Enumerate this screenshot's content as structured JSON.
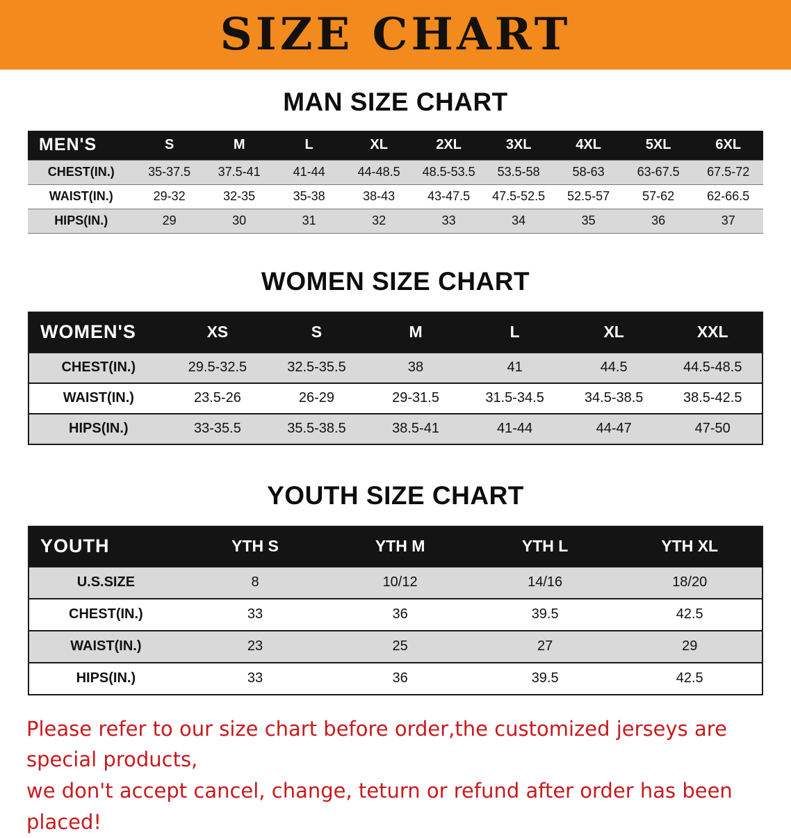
{
  "banner": {
    "title": "SIZE CHART",
    "bg_color": "#F28A1E"
  },
  "colors": {
    "table_header_bg": "#141414",
    "row_alt_bg": "#D9D9D9",
    "disclaimer_red": "#C81A1E"
  },
  "sections": [
    {
      "title": "MAN SIZE CHART",
      "table": {
        "label": "MEN'S",
        "columns": [
          "S",
          "M",
          "L",
          "XL",
          "2XL",
          "3XL",
          "4XL",
          "5XL",
          "6XL"
        ],
        "rows": [
          {
            "label": "CHEST(IN.)",
            "values": [
              "35-37.5",
              "37.5-41",
              "41-44",
              "44-48.5",
              "48.5-53.5",
              "53.5-58",
              "58-63",
              "63-67.5",
              "67.5-72"
            ]
          },
          {
            "label": "WAIST(IN.)",
            "values": [
              "29-32",
              "32-35",
              "35-38",
              "38-43",
              "43-47.5",
              "47.5-52.5",
              "52.5-57",
              "57-62",
              "62-66.5"
            ]
          },
          {
            "label": "HIPS(IN.)",
            "values": [
              "29",
              "30",
              "31",
              "32",
              "33",
              "34",
              "35",
              "36",
              "37"
            ]
          }
        ]
      }
    },
    {
      "title": "WOMEN SIZE CHART",
      "table": {
        "label": "WOMEN'S",
        "columns": [
          "XS",
          "S",
          "M",
          "L",
          "XL",
          "XXL"
        ],
        "rows": [
          {
            "label": "CHEST(IN.)",
            "values": [
              "29.5-32.5",
              "32.5-35.5",
              "38",
              "41",
              "44.5",
              "44.5-48.5"
            ]
          },
          {
            "label": "WAIST(IN.)",
            "values": [
              "23.5-26",
              "26-29",
              "29-31.5",
              "31.5-34.5",
              "34.5-38.5",
              "38.5-42.5"
            ]
          },
          {
            "label": "HIPS(IN.)",
            "values": [
              "33-35.5",
              "35.5-38.5",
              "38.5-41",
              "41-44",
              "44-47",
              "47-50"
            ]
          }
        ]
      }
    },
    {
      "title": "YOUTH SIZE CHART",
      "table": {
        "label": "YOUTH",
        "columns": [
          "YTH S",
          "YTH M",
          "YTH L",
          "YTH XL"
        ],
        "rows": [
          {
            "label": "U.S.SIZE",
            "values": [
              "8",
              "10/12",
              "14/16",
              "18/20"
            ]
          },
          {
            "label": "CHEST(IN.)",
            "values": [
              "33",
              "36",
              "39.5",
              "42.5"
            ]
          },
          {
            "label": "WAIST(IN.)",
            "values": [
              "23",
              "25",
              "27",
              "29"
            ]
          },
          {
            "label": "HIPS(IN.)",
            "values": [
              "33",
              "36",
              "39.5",
              "42.5"
            ]
          }
        ]
      }
    }
  ],
  "disclaimer": {
    "color": "#C81A1E",
    "lines": [
      "Please refer to our size chart before order,the customized jerseys are special products,",
      "we don't accept cancel, change, teturn or refund after order has been placed!"
    ]
  }
}
